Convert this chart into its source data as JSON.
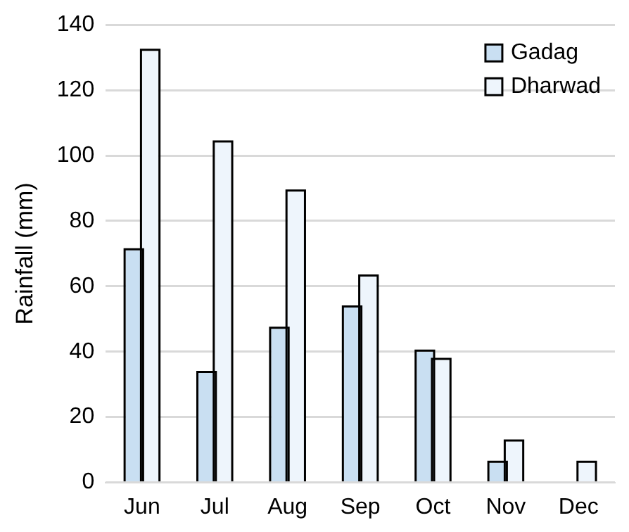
{
  "chart_data": {
    "type": "bar",
    "ylabel": "Rainfall (mm)",
    "categories": [
      "Jun",
      "Jul",
      "Aug",
      "Sep",
      "Oct",
      "Nov",
      "Dec"
    ],
    "series": [
      {
        "name": "Gadag",
        "color": "#c9dff2",
        "values": [
          71,
          33.5,
          47,
          53.5,
          40,
          6,
          0
        ]
      },
      {
        "name": "Dharwad",
        "color": "#eef5fc",
        "values": [
          132,
          104,
          89,
          63,
          37.5,
          12.5,
          6
        ]
      }
    ],
    "ylim": [
      0,
      140
    ],
    "yticks": [
      0,
      20,
      40,
      60,
      80,
      100,
      120,
      140
    ],
    "grid": "y",
    "legend": "top right"
  }
}
